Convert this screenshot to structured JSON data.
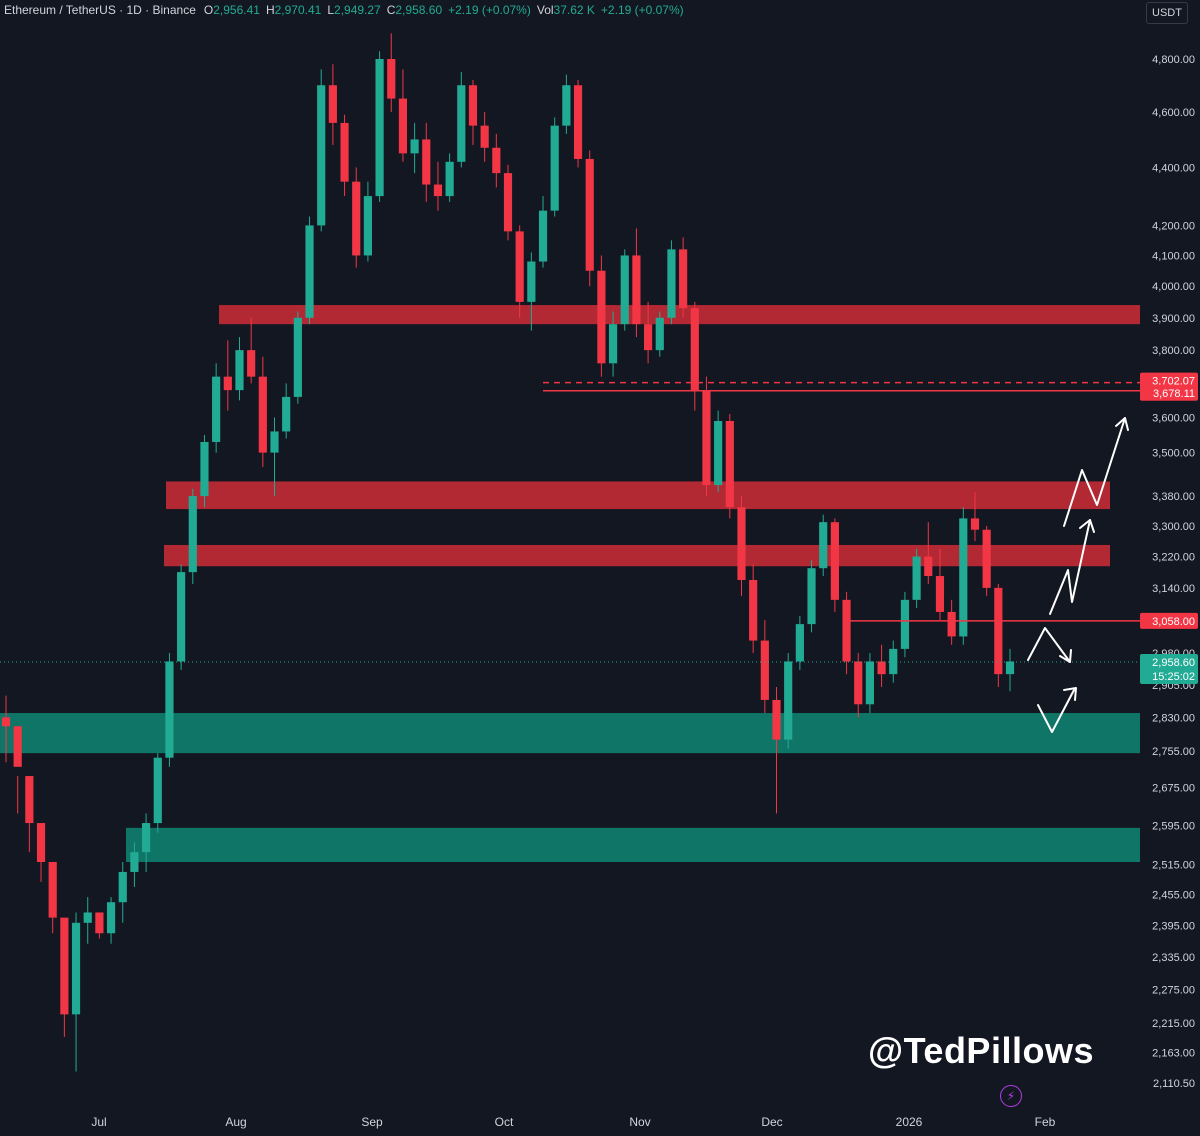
{
  "legend": {
    "symbol": "Ethereum / TetherUS · 1D · Binance",
    "o_label": "O",
    "o_value": "2,956.41",
    "h_label": "H",
    "h_value": "2,970.41",
    "l_label": "L",
    "l_value": "2,949.27",
    "c_label": "C",
    "c_value": "2,958.60",
    "change": "+2.19 (+0.07%)",
    "vol_label": "Vol",
    "vol_value": "37.62 K",
    "vol_change": "+2.19 (+0.07%)"
  },
  "currency": "USDT",
  "watermark": "@TedPillows",
  "icons": {
    "bolt": "lightning-bolt-icon"
  },
  "colors": {
    "background": "#131722",
    "up": "#22ab94",
    "down": "#f23645",
    "resistance_zone": "#b22833",
    "support_zone": "#0f7567",
    "axis_text": "#d1d4dc"
  },
  "chart_data": {
    "type": "candlestick",
    "title": "",
    "symbol": "Ethereum / TetherUS",
    "interval": "1D",
    "exchange": "Binance",
    "y_scale": "log",
    "y_tick_labels": [
      "4,800.00",
      "4,600.00",
      "4,400.00",
      "4,200.00",
      "4,100.00",
      "4,000.00",
      "3,900.00",
      "3,800.00",
      "3,600.00",
      "3,500.00",
      "3,380.00",
      "3,300.00",
      "3,220.00",
      "3,140.00",
      "2,980.00",
      "2,905.00",
      "2,830.00",
      "2,755.00",
      "2,675.00",
      "2,595.00",
      "2,515.00",
      "2,455.00",
      "2,395.00",
      "2,335.00",
      "2,275.00",
      "2,215.00",
      "2,163.00",
      "2,110.50"
    ],
    "x_tick_labels": [
      "Jul",
      "Aug",
      "Sep",
      "Oct",
      "Nov",
      "Dec",
      "2026",
      "Feb"
    ],
    "price_ohlc": {
      "open": 2956.41,
      "high": 2970.41,
      "low": 2949.27,
      "close": 2958.6
    },
    "current_price_label": "2,958.60",
    "countdown_label": "15:25:02",
    "price_labels": [
      {
        "text": "3,702.07",
        "value": 3702.07,
        "style": "dashed"
      },
      {
        "text": "3,678.11",
        "value": 3678.11,
        "style": "solid"
      },
      {
        "text": "3,058.00",
        "value": 3058.0,
        "style": "solid"
      }
    ],
    "resistance_zones": [
      [
        3880,
        3940
      ],
      [
        3345,
        3420
      ],
      [
        3195,
        3250
      ]
    ],
    "support_zones": [
      [
        2750,
        2840
      ],
      [
        2520,
        2590
      ]
    ],
    "candles_approx": [
      [
        2830,
        2880,
        2730,
        2810
      ],
      [
        2810,
        2700,
        2620,
        2720
      ],
      [
        2700,
        2610,
        2540,
        2600
      ],
      [
        2600,
        2560,
        2480,
        2520
      ],
      [
        2520,
        2440,
        2380,
        2410
      ],
      [
        2410,
        2300,
        2190,
        2230
      ],
      [
        2230,
        2420,
        2130,
        2400
      ],
      [
        2400,
        2450,
        2360,
        2420
      ],
      [
        2420,
        2400,
        2370,
        2380
      ],
      [
        2380,
        2450,
        2360,
        2440
      ],
      [
        2440,
        2520,
        2400,
        2500
      ],
      [
        2500,
        2560,
        2470,
        2540
      ],
      [
        2540,
        2620,
        2500,
        2600
      ],
      [
        2600,
        2750,
        2580,
        2740
      ],
      [
        2740,
        2980,
        2720,
        2960
      ],
      [
        2960,
        3200,
        2940,
        3180
      ],
      [
        3180,
        3400,
        3150,
        3380
      ],
      [
        3380,
        3550,
        3350,
        3530
      ],
      [
        3530,
        3760,
        3500,
        3720
      ],
      [
        3720,
        3830,
        3620,
        3680
      ],
      [
        3680,
        3840,
        3650,
        3800
      ],
      [
        3800,
        3900,
        3700,
        3720
      ],
      [
        3720,
        3780,
        3460,
        3500
      ],
      [
        3500,
        3600,
        3380,
        3560
      ],
      [
        3560,
        3700,
        3540,
        3660
      ],
      [
        3660,
        3920,
        3640,
        3900
      ],
      [
        3900,
        4230,
        3880,
        4200
      ],
      [
        4200,
        4760,
        4180,
        4700
      ],
      [
        4700,
        4780,
        4480,
        4560
      ],
      [
        4560,
        4590,
        4300,
        4350
      ],
      [
        4350,
        4400,
        4060,
        4100
      ],
      [
        4100,
        4350,
        4080,
        4300
      ],
      [
        4300,
        4830,
        4280,
        4800
      ],
      [
        4800,
        4900,
        4600,
        4650
      ],
      [
        4650,
        4760,
        4420,
        4450
      ],
      [
        4450,
        4560,
        4380,
        4500
      ],
      [
        4500,
        4560,
        4280,
        4340
      ],
      [
        4340,
        4420,
        4250,
        4300
      ],
      [
        4300,
        4450,
        4280,
        4420
      ],
      [
        4420,
        4750,
        4400,
        4700
      ],
      [
        4700,
        4720,
        4480,
        4550
      ],
      [
        4550,
        4600,
        4420,
        4470
      ],
      [
        4470,
        4520,
        4330,
        4380
      ],
      [
        4380,
        4410,
        4150,
        4180
      ],
      [
        4180,
        4200,
        3900,
        3950
      ],
      [
        3950,
        4110,
        3860,
        4080
      ],
      [
        4080,
        4300,
        4060,
        4250
      ],
      [
        4250,
        4580,
        4230,
        4550
      ],
      [
        4550,
        4740,
        4520,
        4700
      ],
      [
        4700,
        4720,
        4400,
        4430
      ],
      [
        4430,
        4460,
        4000,
        4050
      ],
      [
        4050,
        4100,
        3720,
        3760
      ],
      [
        3760,
        3920,
        3720,
        3880
      ],
      [
        3880,
        4120,
        3860,
        4100
      ],
      [
        4100,
        4190,
        3840,
        3880
      ],
      [
        3880,
        3950,
        3760,
        3800
      ],
      [
        3800,
        3920,
        3780,
        3900
      ],
      [
        3900,
        4150,
        3880,
        4120
      ],
      [
        4120,
        4160,
        3900,
        3930
      ],
      [
        3930,
        3950,
        3620,
        3680
      ],
      [
        3680,
        3720,
        3380,
        3410
      ],
      [
        3410,
        3620,
        3390,
        3590
      ],
      [
        3590,
        3610,
        3320,
        3350
      ],
      [
        3350,
        3380,
        3120,
        3160
      ],
      [
        3160,
        3200,
        2980,
        3010
      ],
      [
        3010,
        3060,
        2840,
        2870
      ],
      [
        2870,
        2900,
        2620,
        2780
      ],
      [
        2780,
        2980,
        2760,
        2960
      ],
      [
        2960,
        3070,
        2940,
        3050
      ],
      [
        3050,
        3210,
        3030,
        3190
      ],
      [
        3190,
        3330,
        3170,
        3310
      ],
      [
        3310,
        3320,
        3080,
        3110
      ],
      [
        3110,
        3130,
        2930,
        2960
      ],
      [
        2960,
        2980,
        2830,
        2860
      ],
      [
        2860,
        2980,
        2840,
        2960
      ],
      [
        2960,
        3000,
        2900,
        2930
      ],
      [
        2930,
        3010,
        2910,
        2990
      ],
      [
        2990,
        3130,
        2970,
        3110
      ],
      [
        3110,
        3240,
        3090,
        3220
      ],
      [
        3220,
        3310,
        3150,
        3170
      ],
      [
        3170,
        3240,
        3060,
        3080
      ],
      [
        3080,
        3110,
        3000,
        3020
      ],
      [
        3020,
        3350,
        3000,
        3320
      ],
      [
        3320,
        3390,
        3260,
        3290
      ],
      [
        3290,
        3300,
        3120,
        3140
      ],
      [
        3140,
        3150,
        2900,
        2930
      ],
      [
        2930,
        2990,
        2890,
        2960
      ]
    ],
    "annotations": {
      "projection_arrows": [
        "down-then-up",
        "up-to-3,600"
      ],
      "watermark": "@TedPillows"
    }
  }
}
